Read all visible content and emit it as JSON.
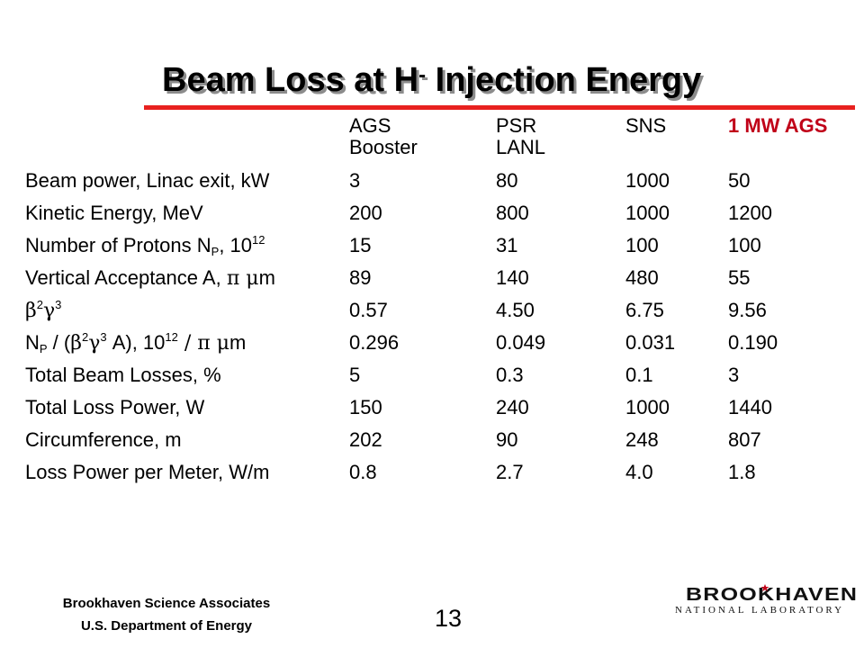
{
  "title": {
    "main": "Beam Loss at H",
    "sup": "-",
    "rest": " Injection Energy"
  },
  "headers": [
    {
      "line1": "AGS",
      "line2": "Booster"
    },
    {
      "line1": "PSR",
      "line2": "LANL"
    },
    {
      "line1": "SNS",
      "line2": ""
    },
    {
      "line1": "1 MW AGS",
      "line2": ""
    }
  ],
  "colors": {
    "accent_line": "#e8211f",
    "highlight_text": "#c00018"
  },
  "rows": [
    {
      "label": "Beam power, Linac exit, kW",
      "values": [
        "3",
        "80",
        "1000",
        "50"
      ]
    },
    {
      "label": "Kinetic Energy, MeV",
      "values": [
        "200",
        "800",
        "1000",
        "1200"
      ]
    },
    {
      "label_parts": {
        "a": "Number of Protons N",
        "b": "P",
        "c": ", 10",
        "d": "12"
      },
      "values": [
        "15",
        "31",
        "100",
        "100"
      ]
    },
    {
      "label_parts": {
        "a": "Vertical Acceptance A, ",
        "b": "π μ",
        "c": "m"
      },
      "values": [
        "89",
        "140",
        "480",
        "55"
      ]
    },
    {
      "label_parts": {
        "a": "β",
        "b": "2",
        "c": "γ",
        "d": "3"
      },
      "values": [
        "0.57",
        "4.50",
        "6.75",
        "9.56"
      ]
    },
    {
      "label_parts": {
        "a": "N",
        "b": "P",
        "c": " / (",
        "d": "β",
        "e": "2",
        "f": "γ",
        "g": "3",
        "h": " A), 10",
        "i": "12",
        "j": " / π μ",
        "k": "m"
      },
      "values": [
        "0.296",
        "0.049",
        "0.031",
        "0.190"
      ]
    },
    {
      "label": "Total Beam Losses, %",
      "values": [
        "5",
        "0.3",
        "0.1",
        "3"
      ]
    },
    {
      "label": "Total Loss Power, W",
      "values": [
        "150",
        "240",
        "1000",
        "1440"
      ]
    },
    {
      "label": "Circumference, m",
      "values": [
        "202",
        "90",
        "248",
        "807"
      ]
    },
    {
      "label": "Loss Power per Meter, W/m",
      "values": [
        "0.8",
        "2.7",
        "4.0",
        "1.8"
      ]
    }
  ],
  "footer": {
    "org1": "Brookhaven Science Associates",
    "org2": "U.S. Department of Energy",
    "page": "13",
    "logo_top": "BROOKHAVEN",
    "logo_bottom": "NATIONAL LABORATORY"
  }
}
